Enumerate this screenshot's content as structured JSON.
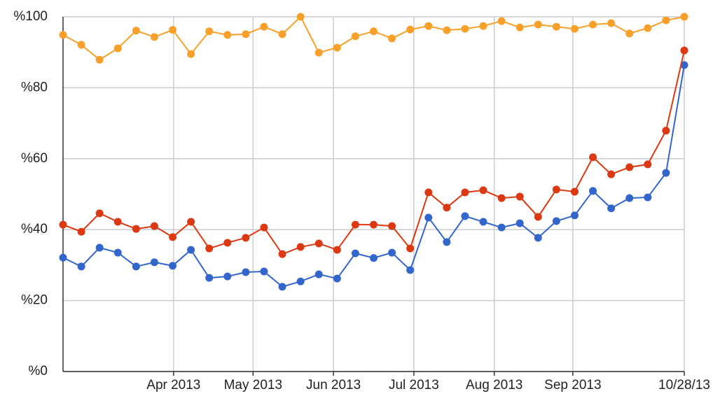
{
  "chart_data": {
    "type": "line",
    "categories": [
      null,
      null,
      null,
      null,
      null,
      null,
      null,
      null,
      null,
      null,
      null,
      null,
      null,
      null,
      null,
      null,
      null,
      null,
      null,
      null,
      null,
      null,
      null,
      null,
      null,
      null,
      null,
      null,
      null,
      null,
      null,
      null,
      null,
      null,
      null
    ],
    "xlim": [
      0,
      34
    ],
    "xticks": [
      {
        "value": 6.05,
        "label": "Apr 2013"
      },
      {
        "value": 10.4,
        "label": "May 2013"
      },
      {
        "value": 14.8,
        "label": "Jun 2013"
      },
      {
        "value": 19.2,
        "label": "Jul 2013"
      },
      {
        "value": 23.6,
        "label": "Aug 2013"
      },
      {
        "value": 27.9,
        "label": "Sep 2013"
      },
      {
        "value": 34,
        "label": "10/28/13"
      }
    ],
    "ylim": [
      0,
      100
    ],
    "yticks": [
      {
        "value": 0,
        "label": "%0"
      },
      {
        "value": 20,
        "label": "%20"
      },
      {
        "value": 40,
        "label": "%40"
      },
      {
        "value": 60,
        "label": "%60"
      },
      {
        "value": 80,
        "label": "%80"
      },
      {
        "value": 100,
        "label": "%100"
      }
    ],
    "grid": true,
    "series": [
      {
        "color": "#3366cc",
        "values": [
          32.1,
          29.6,
          34.9,
          33.5,
          29.6,
          30.8,
          29.8,
          34.3,
          26.4,
          26.8,
          28.0,
          28.2,
          23.9,
          25.4,
          27.4,
          26.2,
          33.3,
          32.0,
          33.5,
          28.6,
          43.4,
          36.5,
          43.8,
          42.2,
          40.6,
          41.8,
          37.7,
          42.4,
          44.0,
          50.9,
          46.0,
          48.9,
          49.1,
          56.0,
          86.4
        ]
      },
      {
        "color": "#dc3912",
        "values": [
          41.4,
          39.4,
          44.6,
          42.2,
          40.2,
          41.0,
          37.9,
          42.2,
          34.7,
          36.3,
          37.7,
          40.6,
          33.1,
          35.1,
          36.1,
          34.3,
          41.4,
          41.4,
          41.0,
          34.7,
          50.5,
          46.2,
          50.5,
          51.1,
          48.9,
          49.3,
          43.6,
          51.3,
          50.7,
          60.4,
          55.6,
          57.6,
          58.4,
          67.9,
          90.5
        ]
      },
      {
        "color": "#f8a02a",
        "values": [
          94.9,
          92.1,
          87.9,
          91.1,
          96.1,
          94.3,
          96.3,
          89.5,
          95.9,
          94.9,
          95.1,
          97.2,
          95.1,
          100,
          89.9,
          91.3,
          94.5,
          95.9,
          93.9,
          96.4,
          97.4,
          96.2,
          96.6,
          97.4,
          98.8,
          97.0,
          97.8,
          97.2,
          96.6,
          97.8,
          98.2,
          95.3,
          96.8,
          99.0,
          100
        ]
      }
    ]
  }
}
